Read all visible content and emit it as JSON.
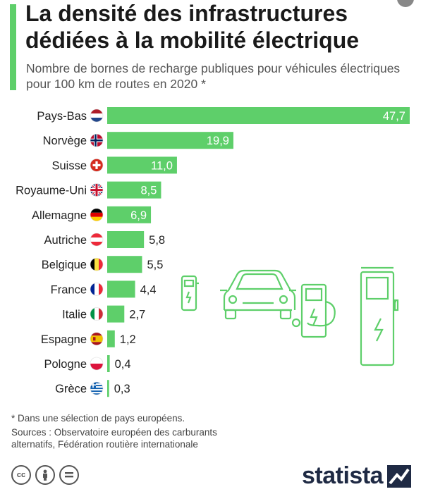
{
  "header": {
    "title": "La densité des infrastructures dédiées à la mobilité électrique",
    "subtitle": "Nombre de bornes de recharge publiques pour véhicules électriques pour 100 km de routes en 2020 *"
  },
  "chart_data": {
    "type": "bar",
    "orientation": "horizontal",
    "title": "La densité des infrastructures dédiées à la mobilité électrique",
    "subtitle": "Nombre de bornes de recharge publiques pour véhicules électriques pour 100 km de routes en 2020 *",
    "categories": [
      "Pays-Bas",
      "Norvège",
      "Suisse",
      "Royaume-Uni",
      "Allemagne",
      "Autriche",
      "Belgique",
      "France",
      "Italie",
      "Espagne",
      "Pologne",
      "Grèce"
    ],
    "values": [
      47.7,
      19.9,
      11.0,
      8.5,
      6.9,
      5.8,
      5.5,
      4.4,
      2.7,
      1.2,
      0.4,
      0.3
    ],
    "value_labels": [
      "47,7",
      "19,9",
      "11,0",
      "8,5",
      "6,9",
      "5,8",
      "5,5",
      "4,4",
      "2,7",
      "1,2",
      "0,4",
      "0,3"
    ],
    "flags": [
      "flag-netherlands-icon",
      "flag-norway-icon",
      "flag-switzerland-icon",
      "flag-uk-icon",
      "flag-germany-icon",
      "flag-austria-icon",
      "flag-belgium-icon",
      "flag-france-icon",
      "flag-italy-icon",
      "flag-spain-icon",
      "flag-poland-icon",
      "flag-greece-icon"
    ],
    "xlim": [
      0,
      47.7
    ],
    "grid": false,
    "bar_color": "#5ecf6a"
  },
  "footer": {
    "footnote": "* Dans une sélection de pays européens.",
    "sources_line1": "Sources : Observatoire européen des carburants",
    "sources_line2": "alternatifs, Fédération routière internationale",
    "brand": "statista",
    "license_icons": [
      "cc-icon",
      "by-icon",
      "nd-icon"
    ]
  },
  "colors": {
    "accent": "#5ecf6a",
    "brand": "#1f2a44"
  }
}
